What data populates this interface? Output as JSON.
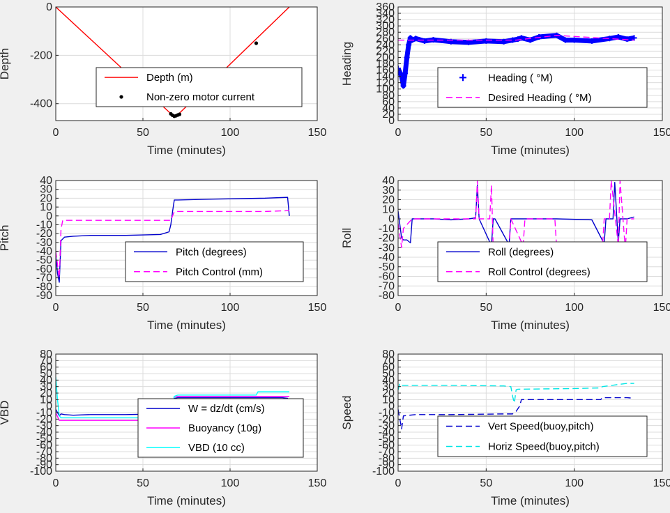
{
  "chart_data": [
    {
      "type": "line",
      "xlabel": "Time (minutes)",
      "ylabel": "Depth",
      "xlim": [
        0,
        150
      ],
      "ylim": [
        -470,
        0
      ],
      "xticks": [
        0,
        50,
        100,
        150
      ],
      "yticks": [
        0,
        -200,
        -400
      ],
      "grid": true,
      "legend_placement": "center-right",
      "series": [
        {
          "name": "Depth (m)",
          "color": "#ff0000",
          "style": "solid",
          "x": [
            0,
            67,
            68,
            69,
            70,
            134
          ],
          "y": [
            0,
            -448,
            -452,
            -450,
            -446,
            0
          ]
        },
        {
          "name": "Non-zero motor current",
          "color": "#000000",
          "style": "dots",
          "x": [
            66,
            67,
            68,
            69,
            70,
            71,
            115
          ],
          "y": [
            -442,
            -448,
            -452,
            -450,
            -447,
            -444,
            -150
          ]
        }
      ]
    },
    {
      "type": "line",
      "xlabel": "Time (minutes)",
      "ylabel": "Heading",
      "xlim": [
        0,
        150
      ],
      "ylim": [
        0,
        360
      ],
      "xticks": [
        0,
        50,
        100,
        150
      ],
      "yticks": [
        0,
        20,
        40,
        60,
        80,
        100,
        120,
        140,
        160,
        180,
        200,
        220,
        240,
        260,
        280,
        300,
        320,
        340,
        360
      ],
      "grid": true,
      "legend_placement": "center-right",
      "series": [
        {
          "name": "Heading ( °M)",
          "color": "#0000ff",
          "style": "plus",
          "x": [
            0,
            2,
            3,
            4,
            5,
            6,
            7,
            8,
            10,
            15,
            20,
            30,
            40,
            50,
            60,
            65,
            68,
            70,
            75,
            80,
            90,
            95,
            100,
            110,
            120,
            125,
            130,
            134
          ],
          "y": [
            165,
            140,
            110,
            150,
            200,
            240,
            262,
            255,
            260,
            252,
            256,
            250,
            248,
            252,
            250,
            255,
            258,
            262,
            255,
            265,
            270,
            255,
            255,
            252,
            260,
            265,
            258,
            262
          ]
        },
        {
          "name": "Desired Heading ( °M)",
          "color": "#ff00ff",
          "style": "dash",
          "x": [
            0,
            67,
            90,
            134
          ],
          "y": [
            255,
            255,
            270,
            255
          ]
        }
      ]
    },
    {
      "type": "line",
      "xlabel": "Time (minutes)",
      "ylabel": "Pitch",
      "xlim": [
        0,
        150
      ],
      "ylim": [
        -90,
        40
      ],
      "xticks": [
        0,
        50,
        100,
        150
      ],
      "yticks": [
        40,
        30,
        20,
        10,
        0,
        -10,
        -20,
        -30,
        -40,
        -50,
        -60,
        -70,
        -80,
        -90
      ],
      "grid": true,
      "legend_placement": "bottom-right",
      "series": [
        {
          "name": "Pitch (degrees)",
          "color": "#0000cc",
          "style": "solid",
          "x": [
            0,
            1,
            2,
            3,
            5,
            10,
            20,
            40,
            60,
            65,
            66,
            67,
            68,
            70,
            90,
            120,
            133,
            134
          ],
          "y": [
            -45,
            -65,
            -75,
            -28,
            -24,
            -23,
            -22,
            -22,
            -21,
            -18,
            -10,
            5,
            18,
            18,
            19,
            20,
            21,
            0
          ]
        },
        {
          "name": "Pitch Control (mm)",
          "color": "#ff00ff",
          "style": "dash",
          "x": [
            0,
            2,
            3,
            4,
            66,
            67,
            68,
            100,
            120,
            134
          ],
          "y": [
            -40,
            -70,
            -15,
            -5,
            -5,
            0,
            5,
            5,
            5,
            6
          ]
        }
      ]
    },
    {
      "type": "line",
      "xlabel": "Time (minutes)",
      "ylabel": "Roll",
      "xlim": [
        0,
        150
      ],
      "ylim": [
        -80,
        40
      ],
      "xticks": [
        0,
        50,
        100,
        150
      ],
      "yticks": [
        40,
        30,
        20,
        10,
        0,
        -10,
        -20,
        -30,
        -40,
        -50,
        -60,
        -70,
        -80
      ],
      "grid": true,
      "legend_placement": "bottom-right",
      "series": [
        {
          "name": "Roll (degrees)",
          "color": "#0000cc",
          "style": "solid",
          "x": [
            0,
            2,
            3,
            5,
            7,
            8,
            10,
            20,
            30,
            40,
            44,
            45,
            46,
            53,
            54,
            55,
            63,
            64,
            65,
            70,
            90,
            110,
            117,
            118,
            122,
            123,
            125,
            126,
            130,
            134
          ],
          "y": [
            8,
            -20,
            -22,
            -22,
            -25,
            0,
            0,
            0,
            -1,
            0,
            1,
            35,
            0,
            -28,
            0,
            0,
            -27,
            0,
            0,
            0,
            0,
            -1,
            -26,
            0,
            0,
            38,
            -25,
            0,
            0,
            2
          ]
        },
        {
          "name": "Roll Control (degrees)",
          "color": "#ff00ff",
          "style": "dash",
          "x": [
            0,
            2,
            3,
            8,
            44,
            45,
            46,
            52,
            53,
            54,
            63,
            64,
            71,
            72,
            89,
            90,
            116,
            117,
            120,
            121,
            125,
            126,
            129,
            130,
            134
          ],
          "y": [
            -5,
            -30,
            -10,
            0,
            0,
            40,
            0,
            0,
            35,
            -32,
            -32,
            0,
            -28,
            0,
            0,
            -30,
            -30,
            0,
            0,
            40,
            -28,
            40,
            -32,
            0,
            0
          ]
        }
      ]
    },
    {
      "type": "line",
      "xlabel": "Time (minutes)",
      "ylabel": "VBD",
      "xlim": [
        0,
        150
      ],
      "ylim": [
        -100,
        80
      ],
      "xticks": [
        0,
        50,
        100,
        150
      ],
      "yticks": [
        80,
        70,
        60,
        50,
        40,
        30,
        20,
        10,
        0,
        -10,
        -20,
        -30,
        -40,
        -50,
        -60,
        -70,
        -80,
        -90,
        -100
      ],
      "grid": true,
      "legend_placement": "center-right",
      "series": [
        {
          "name": "W = dz/dt (cm/s)",
          "color": "#0000cc",
          "style": "solid",
          "x": [
            0,
            1,
            2,
            3,
            5,
            10,
            20,
            40,
            60,
            65,
            66,
            67,
            68,
            70,
            90,
            110,
            120,
            130,
            133,
            134
          ],
          "y": [
            -5,
            -10,
            -15,
            -12,
            -13,
            -14,
            -13,
            -13,
            -12,
            -13,
            -5,
            5,
            12,
            13,
            13,
            13,
            13,
            13,
            12,
            0
          ]
        },
        {
          "name": "Buoyancy (10g)",
          "color": "#ff00ff",
          "style": "solid",
          "x": [
            0,
            2,
            3,
            66,
            67,
            68,
            70,
            134
          ],
          "y": [
            -10,
            -22,
            -22,
            -22,
            5,
            15,
            15,
            15
          ]
        },
        {
          "name": "VBD (10 cc)",
          "color": "#00ffff",
          "style": "solid",
          "x": [
            0,
            1,
            2,
            3,
            66,
            67,
            68,
            70,
            115,
            116,
            134
          ],
          "y": [
            45,
            10,
            -15,
            -18,
            -18,
            5,
            15,
            17,
            17,
            22,
            22
          ]
        }
      ]
    },
    {
      "type": "line",
      "xlabel": "Time (minutes)",
      "ylabel": "Speed",
      "xlim": [
        0,
        150
      ],
      "ylim": [
        -100,
        80
      ],
      "xticks": [
        0,
        50,
        100,
        150
      ],
      "yticks": [
        80,
        70,
        60,
        50,
        40,
        30,
        20,
        10,
        0,
        -10,
        -20,
        -30,
        -40,
        -50,
        -60,
        -70,
        -80,
        -90,
        -100
      ],
      "grid": true,
      "legend_placement": "center-right",
      "series": [
        {
          "name": "Vert Speed(buoy,pitch)",
          "color": "#0000cc",
          "style": "dash",
          "x": [
            0,
            1,
            2,
            3,
            10,
            30,
            60,
            65,
            67,
            69,
            70,
            100,
            115,
            116,
            130,
            134
          ],
          "y": [
            -5,
            -20,
            -35,
            -15,
            -13,
            -13,
            -12,
            -12,
            -8,
            0,
            10,
            10,
            10,
            13,
            13,
            12
          ]
        },
        {
          "name": "Horiz Speed(buoy,pitch)",
          "color": "#00e5e5",
          "style": "dash",
          "x": [
            0,
            1,
            2,
            3,
            30,
            60,
            64,
            65,
            66,
            67,
            68,
            100,
            115,
            116,
            130,
            134
          ],
          "y": [
            25,
            35,
            32,
            32,
            32,
            31,
            30,
            15,
            5,
            25,
            26,
            27,
            28,
            30,
            35,
            35
          ]
        }
      ]
    }
  ]
}
